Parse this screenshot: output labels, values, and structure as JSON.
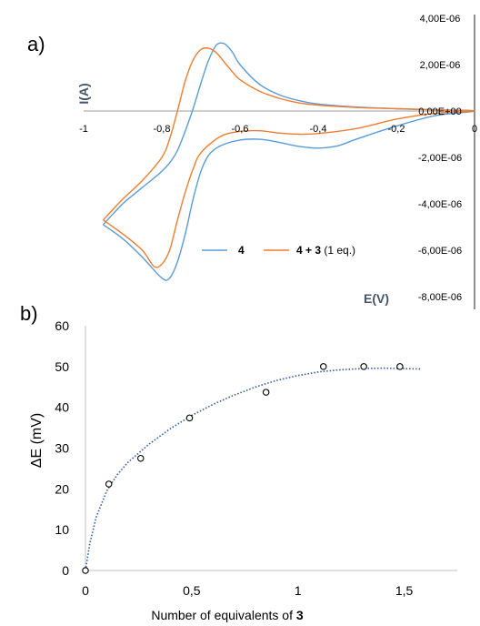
{
  "chart_data": [
    {
      "type": "line",
      "panel_label": "a)",
      "xlabel": "E(V)",
      "ylabel": "I(A)",
      "xlim": [
        -1,
        0
      ],
      "ylim": [
        -8e-06,
        4e-06
      ],
      "x_tick_labels": [
        "-1",
        "-0,8",
        "-0,6",
        "-0,4",
        "-0,2",
        "0"
      ],
      "y_tick_labels": [
        "4,00E-06",
        "2,00E-06",
        "0,00E+00",
        "-2,00E-06",
        "-4,00E-06",
        "-6,00E-06",
        "-8,00E-06"
      ],
      "legend": [
        {
          "series": "4",
          "label_bold": "4",
          "label_rest": ""
        },
        {
          "series": "4+3",
          "label_bold": "4 + 3",
          "label_rest": " (1 eq.)"
        }
      ],
      "series": [
        {
          "name": "4",
          "color": "#5b9bd5",
          "x": [
            -0.95,
            -0.9,
            -0.85,
            -0.8,
            -0.77,
            -0.75,
            -0.72,
            -0.7,
            -0.68,
            -0.66,
            -0.64,
            -0.62,
            -0.6,
            -0.55,
            -0.5,
            -0.45,
            -0.4,
            -0.3,
            -0.2,
            -0.1,
            0.0,
            -0.1,
            -0.2,
            -0.3,
            -0.35,
            -0.4,
            -0.45,
            -0.5,
            -0.55,
            -0.6,
            -0.65,
            -0.68,
            -0.7,
            -0.72,
            -0.74,
            -0.76,
            -0.78,
            -0.8,
            -0.85,
            -0.9,
            -0.95
          ],
          "y": [
            -4.9e-06,
            -4e-06,
            -3.3e-06,
            -2.6e-06,
            -2e-06,
            -1.3e-06,
            1e-07,
            1.2e-06,
            2.2e-06,
            2.85e-06,
            2.9e-06,
            2.55e-06,
            2e-06,
            1.15e-06,
            7e-07,
            4.5e-07,
            3e-07,
            1.7e-07,
            1e-07,
            5e-08,
            0.0,
            -2e-07,
            -6.5e-07,
            -1.2e-06,
            -1.5e-06,
            -1.6e-06,
            -1.52e-06,
            -1.35e-06,
            -1.22e-06,
            -1.25e-06,
            -1.5e-06,
            -1.9e-06,
            -2.6e-06,
            -3.8e-06,
            -5.3e-06,
            -6.5e-06,
            -7.2e-06,
            -7.2e-06,
            -6.3e-06,
            -5.5e-06,
            -4.9e-06
          ]
        },
        {
          "name": "4+3",
          "color": "#ed7d31",
          "x": [
            -0.95,
            -0.9,
            -0.85,
            -0.8,
            -0.78,
            -0.76,
            -0.74,
            -0.72,
            -0.7,
            -0.68,
            -0.66,
            -0.64,
            -0.62,
            -0.6,
            -0.55,
            -0.5,
            -0.45,
            -0.4,
            -0.3,
            -0.2,
            -0.1,
            0.0,
            -0.1,
            -0.2,
            -0.3,
            -0.4,
            -0.45,
            -0.5,
            -0.55,
            -0.6,
            -0.65,
            -0.7,
            -0.72,
            -0.74,
            -0.76,
            -0.78,
            -0.8,
            -0.82,
            -0.85,
            -0.9,
            -0.95
          ],
          "y": [
            -4.7e-06,
            -3.8e-06,
            -3e-06,
            -2e-06,
            -1.2e-06,
            0.0,
            1.3e-06,
            2.2e-06,
            2.65e-06,
            2.7e-06,
            2.5e-06,
            2.1e-06,
            1.7e-06,
            1.35e-06,
            8.5e-07,
            5.5e-07,
            3.5e-07,
            2.5e-07,
            1.5e-07,
            1e-07,
            5e-08,
            0.0,
            -1e-07,
            -3.5e-07,
            -7.5e-07,
            -9.7e-07,
            -1e-06,
            -9.5e-07,
            -8.5e-07,
            -8.8e-07,
            -1.1e-06,
            -1.8e-06,
            -2.5e-06,
            -3.5e-06,
            -4.7e-06,
            -6e-06,
            -6.6e-06,
            -6.7e-06,
            -6e-06,
            -5.3e-06,
            -4.7e-06
          ]
        }
      ]
    },
    {
      "type": "scatter",
      "panel_label": "b)",
      "xlabel_text": "Number of equivalents of ",
      "xlabel_bold": "3",
      "ylabel": "ΔE (mV)",
      "xlim": [
        0,
        1.75
      ],
      "ylim": [
        0,
        60
      ],
      "x_ticks": [
        0,
        0.5,
        1,
        1.5
      ],
      "x_tick_labels": [
        "0",
        "0,5",
        "1",
        "1,5"
      ],
      "y_ticks": [
        0,
        10,
        20,
        30,
        40,
        50,
        60
      ],
      "y_tick_labels": [
        "0",
        "10",
        "20",
        "30",
        "40",
        "50",
        "60"
      ],
      "points": {
        "x": [
          0,
          0.11,
          0.26,
          0.49,
          0.85,
          1.12,
          1.31,
          1.48
        ],
        "y": [
          0,
          21.2,
          27.5,
          37.4,
          43.7,
          50,
          50,
          50
        ]
      },
      "trendline": {
        "style": "dotted",
        "color": "#2e5b9e",
        "x": [
          0,
          0.02,
          0.05,
          0.1,
          0.15,
          0.2,
          0.3,
          0.4,
          0.5,
          0.6,
          0.7,
          0.8,
          0.9,
          1.0,
          1.1,
          1.2,
          1.3,
          1.4,
          1.5,
          1.58
        ],
        "y": [
          0,
          6.5,
          13.0,
          19.5,
          23.5,
          26.5,
          31.0,
          34.8,
          38.0,
          40.7,
          43.0,
          45.0,
          46.6,
          47.8,
          48.7,
          49.2,
          49.5,
          49.6,
          49.5,
          49.4
        ]
      }
    }
  ]
}
